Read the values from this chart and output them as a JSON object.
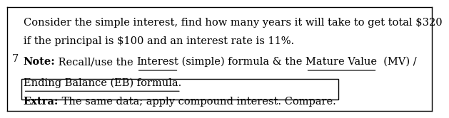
{
  "line1": "Consider the simple interest, find how many years it will take to get total $320",
  "line2": "if the principal is $100 and an interest rate is 11%.",
  "row_number": "7",
  "note_label": "Note:",
  "note_text_plain": " Recall/use the ",
  "note_underline1": "Interest",
  "note_mid1": " (simple) formula & the ",
  "note_underline2": "Mature Value",
  "note_mid2": "  (MV) /",
  "note_line2": "Ending Balance (EB) formula.",
  "extra_label": "Extra:",
  "extra_text": " The same data; apply compound interest. Compare.",
  "bg_color": "#ffffff",
  "border_color": "#000000",
  "text_color": "#000000",
  "font_size": 10.5,
  "row_font_size": 10.5
}
